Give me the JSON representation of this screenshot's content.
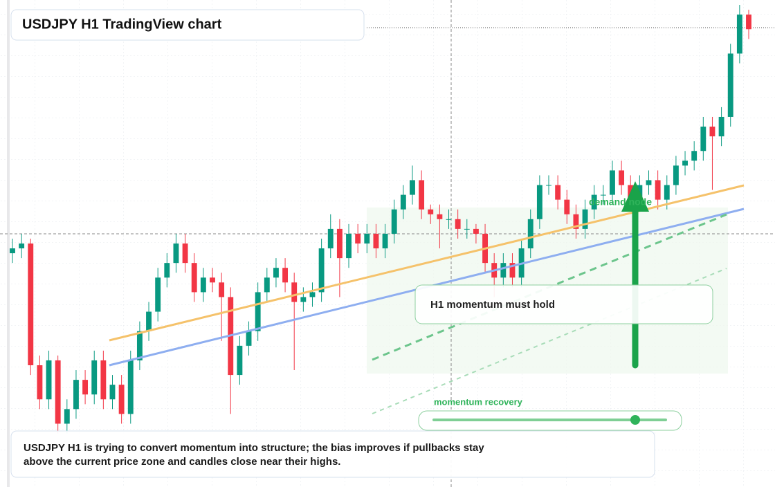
{
  "header": {
    "title": "USDJPY H1 TradingView chart"
  },
  "chart_data": {
    "type": "candlestick",
    "ylim": [
      0,
      100
    ],
    "up_color": "#089981",
    "down_color": "#f23645",
    "candles": [
      [
        48,
        51,
        46,
        49
      ],
      [
        49,
        52,
        47,
        50
      ],
      [
        50,
        51,
        23,
        25
      ],
      [
        25,
        27,
        16,
        18
      ],
      [
        18,
        28,
        16,
        26
      ],
      [
        26,
        27,
        11,
        13
      ],
      [
        13,
        18,
        11,
        16
      ],
      [
        16,
        24,
        14,
        22
      ],
      [
        22,
        24,
        17,
        19
      ],
      [
        19,
        28,
        17,
        26
      ],
      [
        26,
        28,
        16,
        18
      ],
      [
        18,
        23,
        16,
        21
      ],
      [
        21,
        23,
        13,
        15
      ],
      [
        15,
        28,
        13,
        26
      ],
      [
        26,
        34,
        24,
        32
      ],
      [
        32,
        38,
        30,
        36
      ],
      [
        36,
        45,
        34,
        43
      ],
      [
        43,
        48,
        41,
        46
      ],
      [
        46,
        52,
        44,
        50
      ],
      [
        50,
        52,
        44,
        46
      ],
      [
        46,
        48,
        38,
        40
      ],
      [
        40,
        45,
        38,
        43
      ],
      [
        43,
        45,
        40,
        42
      ],
      [
        42,
        44,
        30,
        39
      ],
      [
        39,
        41,
        15,
        23
      ],
      [
        23,
        31,
        21,
        29
      ],
      [
        29,
        34,
        27,
        32
      ],
      [
        32,
        42,
        30,
        40
      ],
      [
        40,
        45,
        38,
        43
      ],
      [
        43,
        47,
        41,
        45
      ],
      [
        45,
        47,
        40,
        42
      ],
      [
        42,
        44,
        24,
        38
      ],
      [
        38,
        41,
        36,
        39
      ],
      [
        39,
        42,
        37,
        40
      ],
      [
        40,
        51,
        38,
        49
      ],
      [
        49,
        56,
        47,
        53
      ],
      [
        53,
        55,
        39,
        47
      ],
      [
        47,
        54,
        45,
        52
      ],
      [
        52,
        54,
        48,
        50
      ],
      [
        50,
        54,
        48,
        52
      ],
      [
        52,
        54,
        47,
        49
      ],
      [
        49,
        54,
        47,
        52
      ],
      [
        52,
        59,
        50,
        57
      ],
      [
        57,
        62,
        55,
        60
      ],
      [
        60,
        66,
        58,
        63
      ],
      [
        63,
        65,
        55,
        57
      ],
      [
        57,
        58,
        54,
        56
      ],
      [
        56,
        58,
        49,
        55
      ],
      [
        55,
        57,
        53,
        55
      ],
      [
        55,
        57,
        51,
        53
      ],
      [
        53,
        55,
        51,
        53
      ],
      [
        53,
        54,
        50,
        52
      ],
      [
        52,
        54,
        44,
        46
      ],
      [
        46,
        48,
        39,
        43
      ],
      [
        43,
        48,
        41,
        46
      ],
      [
        46,
        48,
        41,
        43
      ],
      [
        43,
        51,
        41,
        49
      ],
      [
        49,
        57,
        47,
        55
      ],
      [
        55,
        64,
        53,
        62
      ],
      [
        62,
        64,
        60,
        62
      ],
      [
        62,
        64,
        57,
        59
      ],
      [
        59,
        61,
        54,
        56
      ],
      [
        56,
        58,
        51,
        53
      ],
      [
        53,
        59,
        51,
        57
      ],
      [
        57,
        62,
        55,
        60
      ],
      [
        60,
        62,
        58,
        60
      ],
      [
        60,
        67,
        58,
        65
      ],
      [
        65,
        67,
        60,
        62
      ],
      [
        62,
        64,
        57,
        59
      ],
      [
        59,
        64,
        57,
        62
      ],
      [
        62,
        65,
        60,
        63
      ],
      [
        63,
        65,
        57,
        59
      ],
      [
        59,
        64,
        57,
        62
      ],
      [
        62,
        68,
        60,
        66
      ],
      [
        66,
        69,
        64,
        67
      ],
      [
        67,
        71,
        65,
        69
      ],
      [
        69,
        76,
        67,
        74
      ],
      [
        74,
        76,
        61,
        72
      ],
      [
        72,
        78,
        70,
        76
      ],
      [
        76,
        91,
        74,
        89
      ],
      [
        89,
        99,
        87,
        97
      ],
      [
        97,
        98,
        92,
        94
      ]
    ]
  },
  "annotations": {
    "zone_label": "demand node",
    "callout": "H1 momentum must hold",
    "slider_label": "momentum recovery"
  },
  "caption": [
    "USDJPY H1 is trying to convert momentum into structure; the bias improves if pullbacks stay",
    "above the current price zone and candles close near their highs."
  ]
}
